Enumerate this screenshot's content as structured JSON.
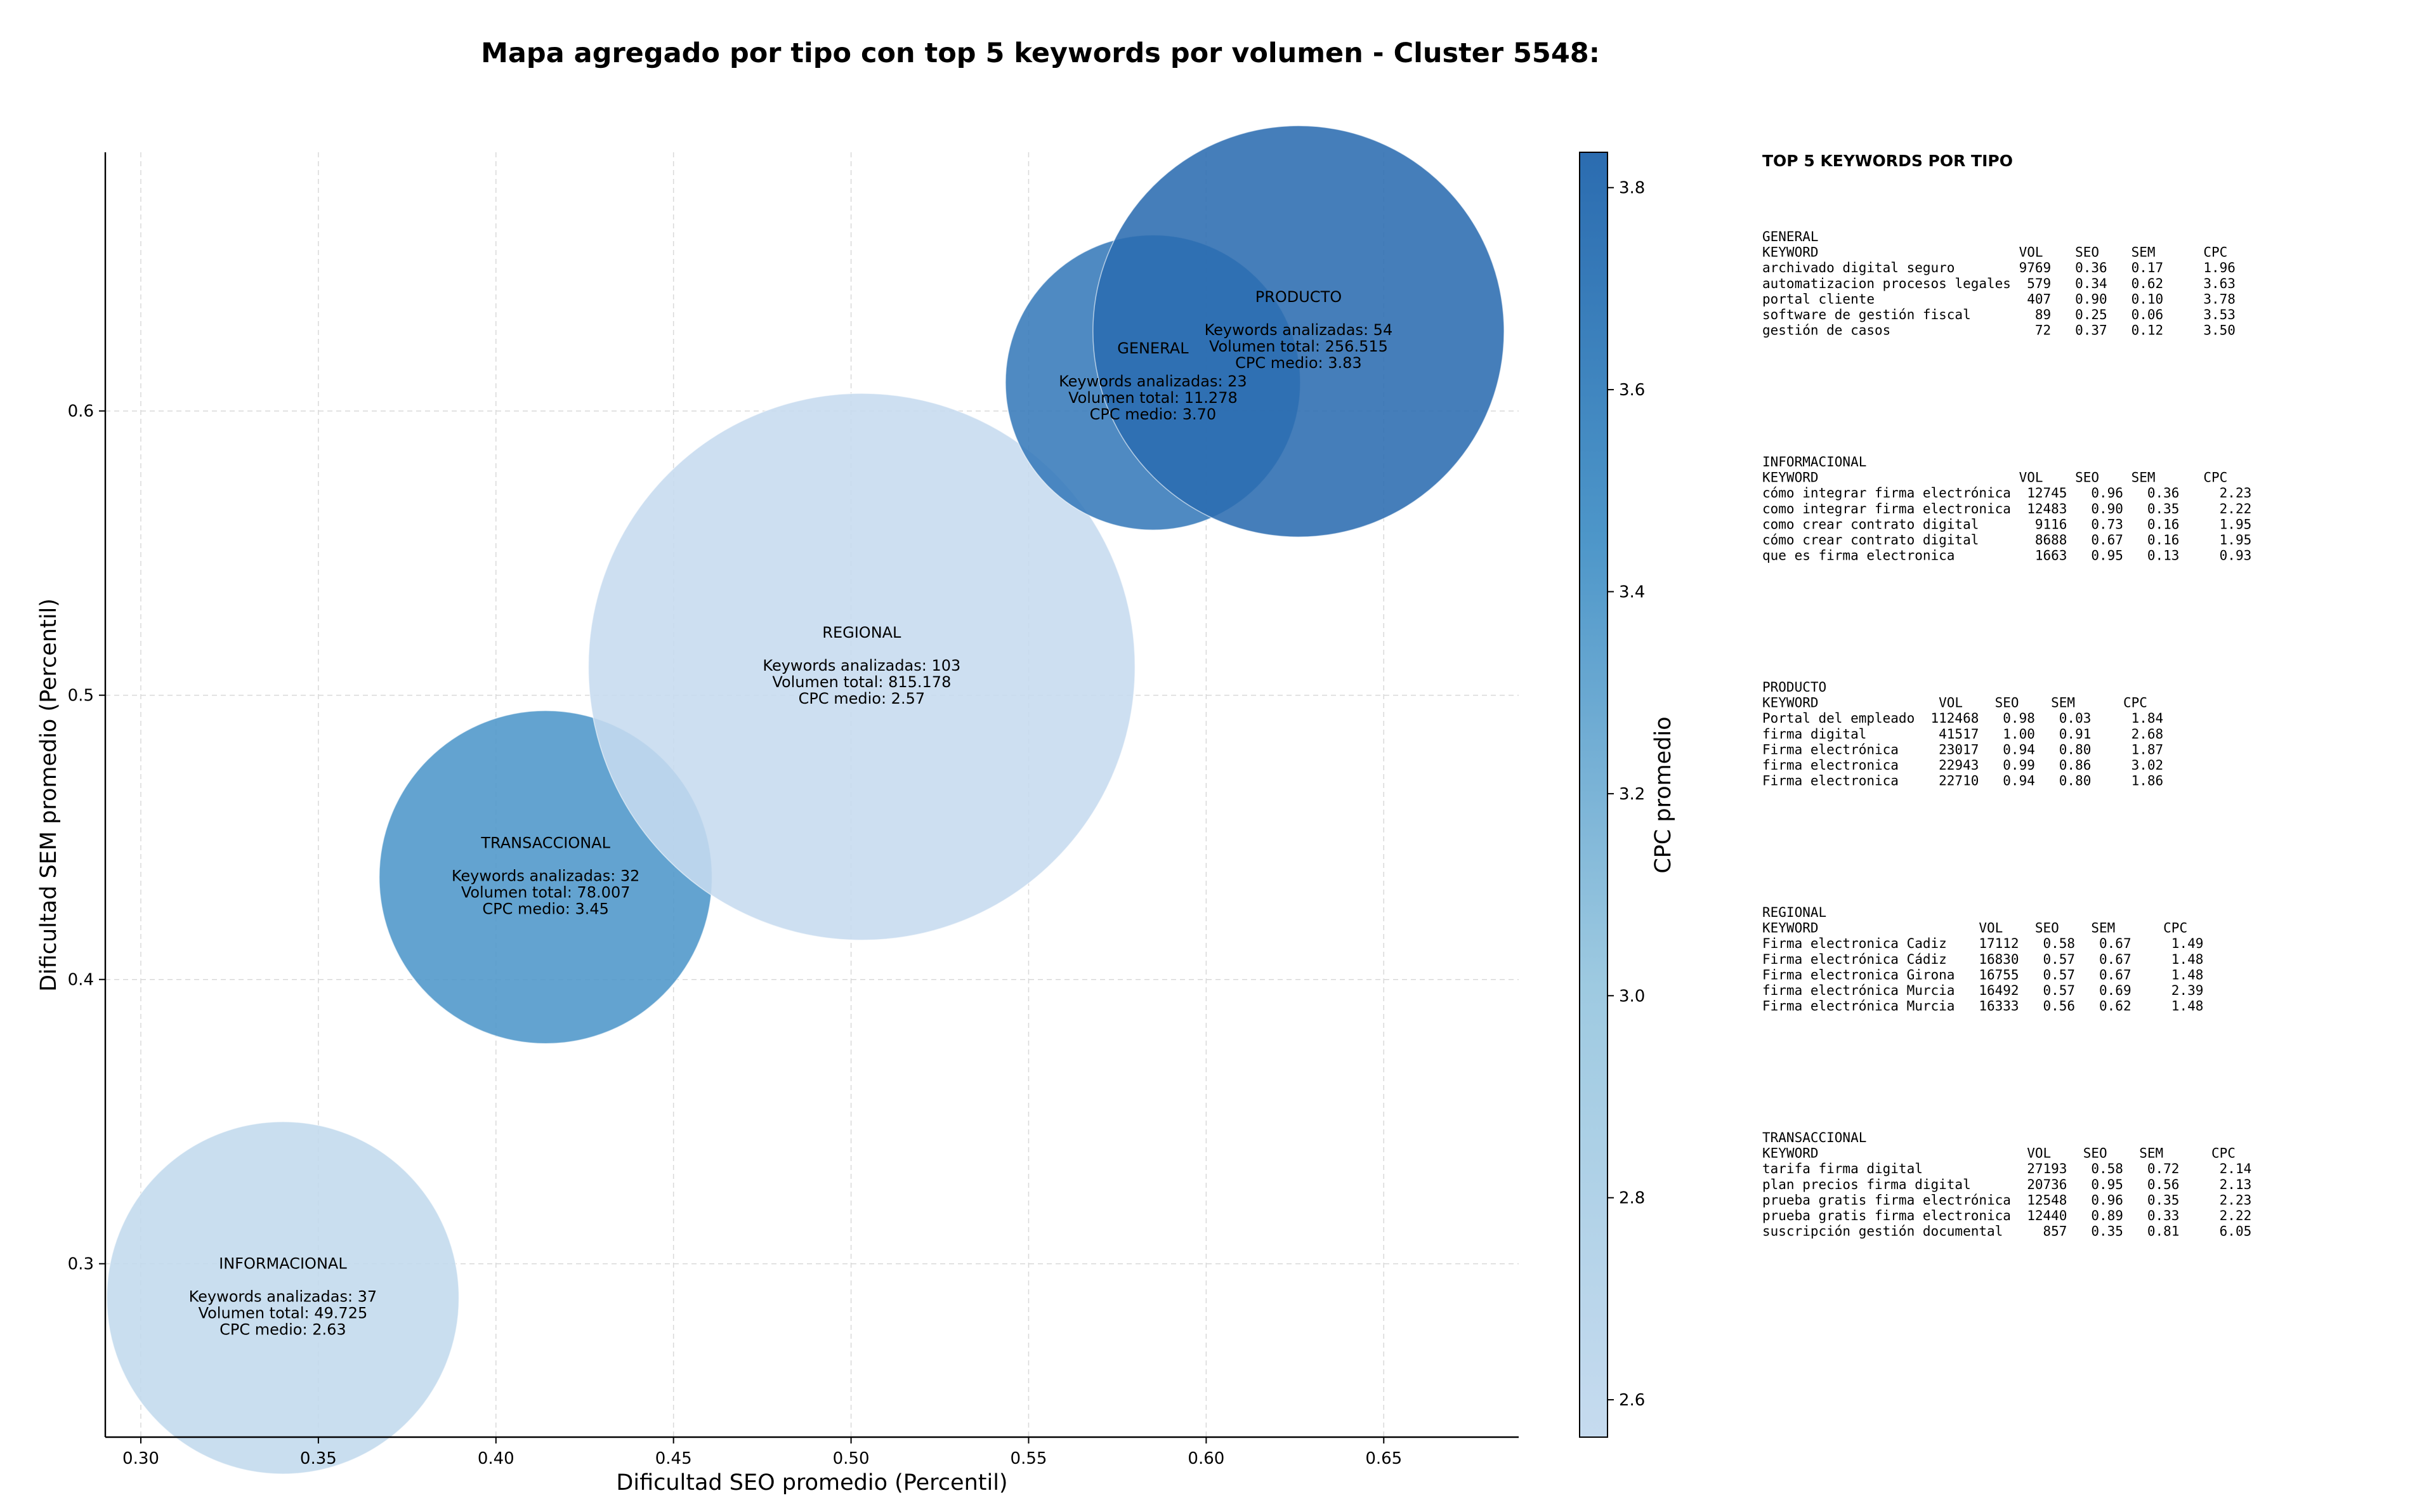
{
  "chart_data": {
    "type": "scatter",
    "title": "Mapa agregado por tipo con top 5 keywords por volumen - Cluster 5548:",
    "xlabel": "Dificultad SEO promedio (Percentil)",
    "ylabel": "Dificultad SEM promedio (Percentil)",
    "xlim": [
      0.29,
      0.688
    ],
    "ylim": [
      0.239,
      0.691
    ],
    "xticks": [
      "0.30",
      "0.35",
      "0.40",
      "0.45",
      "0.50",
      "0.55",
      "0.60",
      "0.65"
    ],
    "yticks": [
      "0.3",
      "0.4",
      "0.5",
      "0.6"
    ],
    "grid": true,
    "colorbar": {
      "label": "CPC promedio",
      "min": 2.57,
      "max": 3.83,
      "ticks": [
        "2.6",
        "2.8",
        "3.0",
        "3.2",
        "3.4",
        "3.6",
        "3.8"
      ],
      "color_low": "#c6dbef",
      "color_high": "#2b6cb0"
    },
    "bubbles": [
      {
        "label": "INFORMACIONAL",
        "x": 0.34,
        "y": 0.288,
        "keywords_label": "Keywords analizadas: 37",
        "volume_label": "Volumen total: 49.725",
        "cpc_label": "CPC medio: 2.63",
        "keywords": 37,
        "volume": 49725,
        "cpc": 2.63
      },
      {
        "label": "TRANSACCIONAL",
        "x": 0.414,
        "y": 0.436,
        "keywords_label": "Keywords analizadas: 32",
        "volume_label": "Volumen total: 78.007",
        "cpc_label": "CPC medio: 3.45",
        "keywords": 32,
        "volume": 78007,
        "cpc": 3.45
      },
      {
        "label": "REGIONAL",
        "x": 0.503,
        "y": 0.51,
        "keywords_label": "Keywords analizadas: 103",
        "volume_label": "Volumen total: 815.178",
        "cpc_label": "CPC medio: 2.57",
        "keywords": 103,
        "volume": 815178,
        "cpc": 2.57
      },
      {
        "label": "GENERAL",
        "x": 0.585,
        "y": 0.61,
        "keywords_label": "Keywords analizadas: 23",
        "volume_label": "Volumen total: 11.278",
        "cpc_label": "CPC medio: 3.70",
        "keywords": 23,
        "volume": 11278,
        "cpc": 3.7
      },
      {
        "label": "PRODUCTO",
        "x": 0.626,
        "y": 0.628,
        "keywords_label": "Keywords analizadas: 54",
        "volume_label": "Volumen total: 256.515",
        "cpc_label": "CPC medio: 3.83",
        "keywords": 54,
        "volume": 256515,
        "cpc": 3.83
      }
    ],
    "panel": {
      "title": "TOP 5 KEYWORDS POR TIPO",
      "sections": [
        {
          "name": "GENERAL",
          "header": "KEYWORD                         VOL    SEO    SEM      CPC",
          "rows": [
            "archivado digital seguro        9769   0.36   0.17     1.96",
            "automatizacion procesos legales  579   0.34   0.62     3.63",
            "portal cliente                   407   0.90   0.10     3.78",
            "software de gestión fiscal        89   0.25   0.06     3.53",
            "gestión de casos                  72   0.37   0.12     3.50"
          ]
        },
        {
          "name": "INFORMACIONAL",
          "header": "KEYWORD                         VOL    SEO    SEM      CPC",
          "rows": [
            "cómo integrar firma electrónica  12745   0.96   0.36     2.23",
            "como integrar firma electronica  12483   0.90   0.35     2.22",
            "como crear contrato digital       9116   0.73   0.16     1.95",
            "cómo crear contrato digital       8688   0.67   0.16     1.95",
            "que es firma electronica          1663   0.95   0.13     0.93"
          ]
        },
        {
          "name": "PRODUCTO",
          "header": "KEYWORD               VOL    SEO    SEM      CPC",
          "rows": [
            "Portal del empleado  112468   0.98   0.03     1.84",
            "firma digital         41517   1.00   0.91     2.68",
            "Firma electrónica     23017   0.94   0.80     1.87",
            "firma electronica     22943   0.99   0.86     3.02",
            "Firma electronica     22710   0.94   0.80     1.86"
          ]
        },
        {
          "name": "REGIONAL",
          "header": "KEYWORD                    VOL    SEO    SEM      CPC",
          "rows": [
            "Firma electronica Cadiz    17112   0.58   0.67     1.49",
            "Firma electrónica Cádiz    16830   0.57   0.67     1.48",
            "Firma electronica Girona   16755   0.57   0.67     1.48",
            "firma electrónica Murcia   16492   0.57   0.69     2.39",
            "Firma electrónica Murcia   16333   0.56   0.62     1.48"
          ]
        },
        {
          "name": "TRANSACCIONAL",
          "header": "KEYWORD                          VOL    SEO    SEM      CPC",
          "rows": [
            "tarifa firma digital             27193   0.58   0.72     2.14",
            "plan precios firma digital       20736   0.95   0.56     2.13",
            "prueba gratis firma electrónica  12548   0.96   0.35     2.23",
            "prueba gratis firma electronica  12440   0.89   0.33     2.22",
            "suscripción gestión documental     857   0.35   0.81     6.05"
          ]
        }
      ]
    }
  }
}
